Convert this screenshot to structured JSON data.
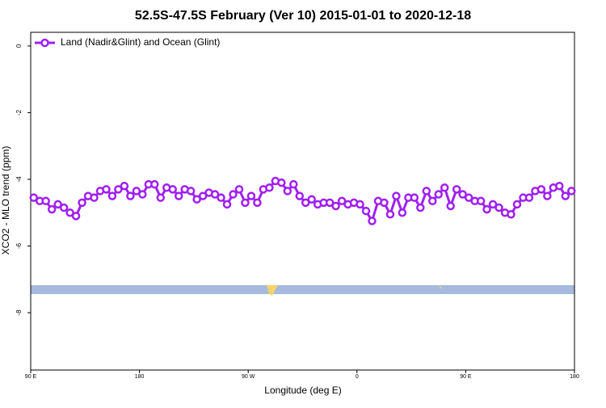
{
  "chart_data": {
    "type": "line",
    "title": "52.5S-47.5S February (Ver 10)   2015-01-01 to 2020-12-18",
    "x_label": "Longitude (deg E)",
    "y_label": "XCO2 - MLO trend (ppm)",
    "xlim": [
      90,
      540
    ],
    "ylim": [
      -9.72,
      0.41
    ],
    "xticks": [
      {
        "value": 90,
        "label": "90 E"
      },
      180,
      {
        "value": 270,
        "label": "90 W"
      },
      {
        "value": 360,
        "label": "0"
      },
      {
        "value": 450,
        "label": "90 E"
      },
      {
        "value": 540,
        "label": "180"
      }
    ],
    "yticks": [
      0,
      -2,
      -4,
      -6,
      -8
    ],
    "legend": "top-left",
    "x": [
      92.5,
      97.5,
      102.5,
      107.5,
      112.5,
      117.5,
      122.5,
      127.5,
      132.5,
      137.5,
      142.5,
      147.5,
      152.5,
      157.5,
      162.5,
      167.5,
      172.5,
      177.5,
      182.5,
      187.5,
      192.5,
      197.5,
      202.5,
      207.5,
      212.5,
      217.5,
      222.5,
      227.5,
      232.5,
      237.5,
      242.5,
      247.5,
      252.5,
      257.5,
      262.5,
      267.5,
      272.5,
      277.5,
      282.5,
      287.5,
      292.5,
      297.5,
      302.5,
      307.5,
      312.5,
      317.5,
      322.5,
      327.5,
      332.5,
      337.5,
      342.5,
      347.5,
      352.5,
      357.5,
      362.5,
      367.5,
      372.5,
      377.5,
      382.5,
      387.5,
      392.5,
      397.5,
      402.5,
      407.5,
      412.5,
      417.5,
      422.5,
      427.5,
      432.5,
      437.5,
      442.5,
      447.5,
      452.5,
      457.5,
      462.5,
      467.5,
      472.5,
      477.5,
      482.5,
      487.5,
      492.5,
      497.5,
      502.5,
      507.5,
      512.5,
      517.5,
      522.5,
      527.5,
      532.5,
      537.5
    ],
    "series": [
      {
        "name": "Land (Nadir&Glint) and Ocean (Glint)",
        "color": "#a020f0",
        "values": [
          -4.55,
          -4.65,
          -4.65,
          -4.9,
          -4.75,
          -4.85,
          -5.0,
          -5.1,
          -4.7,
          -4.5,
          -4.55,
          -4.35,
          -4.3,
          -4.5,
          -4.3,
          -4.2,
          -4.5,
          -4.35,
          -4.45,
          -4.15,
          -4.15,
          -4.55,
          -4.25,
          -4.3,
          -4.5,
          -4.3,
          -4.35,
          -4.6,
          -4.5,
          -4.4,
          -4.45,
          -4.55,
          -4.75,
          -4.45,
          -4.3,
          -4.7,
          -4.5,
          -4.7,
          -4.3,
          -4.25,
          -4.05,
          -4.1,
          -4.35,
          -4.15,
          -4.5,
          -4.7,
          -4.6,
          -4.75,
          -4.7,
          -4.7,
          -4.8,
          -4.65,
          -4.75,
          -4.7,
          -4.75,
          -4.95,
          -5.25,
          -4.65,
          -4.7,
          -5.05,
          -4.5,
          -5.0,
          -4.55,
          -4.55,
          -4.85,
          -4.35,
          -4.65,
          -4.45,
          -4.25,
          -4.8,
          -4.3,
          -4.45,
          -4.55,
          -4.65,
          -4.65,
          -4.9,
          -4.75,
          -4.85,
          -5.0,
          -5.05,
          -4.75,
          -4.55,
          -4.55,
          -4.35,
          -4.3,
          -4.5,
          -4.25,
          -4.2,
          -4.5,
          -4.35
        ]
      }
    ]
  }
}
